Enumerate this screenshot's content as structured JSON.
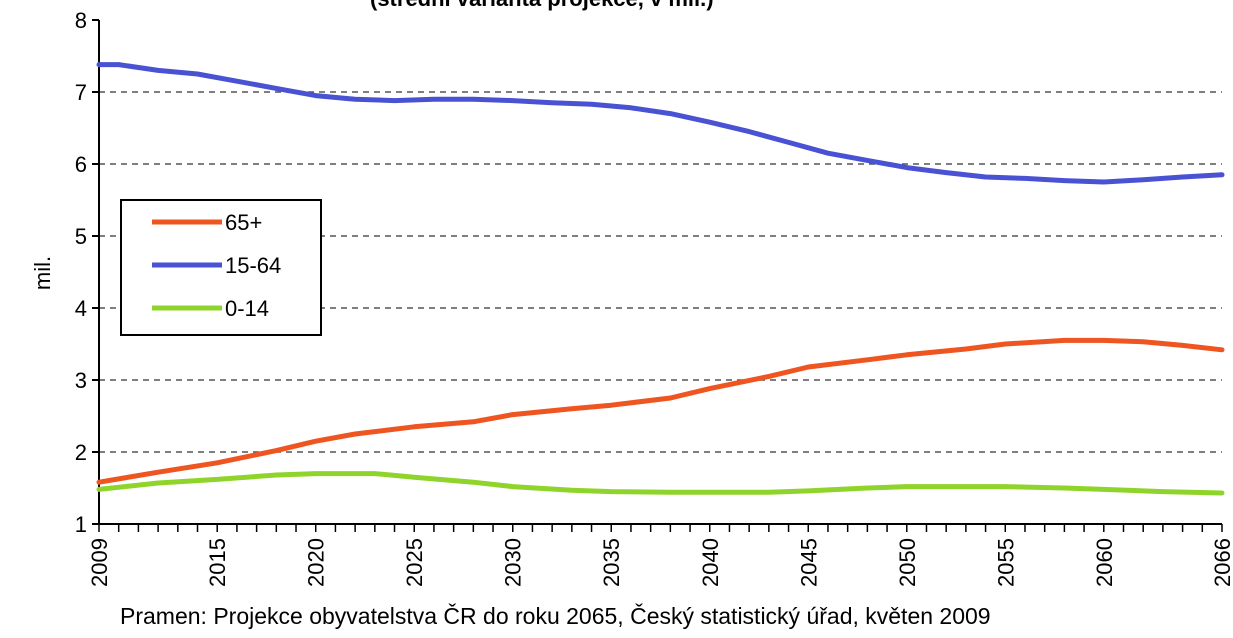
{
  "title_fragment": "(střední varianta projekce, v mil.)",
  "source_note": "Pramen: Projekce obyvatelstva ČR do roku 2065, Český statistický úřad, květen 2009",
  "chart_data": {
    "type": "line",
    "ylabel": "mil.",
    "xlabel": "",
    "ylim": [
      1,
      8
    ],
    "xlim": [
      2009,
      2066
    ],
    "grid": "horizontal-dashed",
    "legend_position": "left",
    "y_ticks": [
      "1",
      "2",
      "3",
      "4",
      "5",
      "6",
      "7",
      "8"
    ],
    "x_ticks": [
      "2009",
      "2015",
      "2020",
      "2025",
      "2030",
      "2035",
      "2040",
      "2045",
      "2050",
      "2055",
      "2060",
      "2066"
    ],
    "series": [
      {
        "name": "65+",
        "color": "#ee5520",
        "x": [
          2009,
          2012,
          2015,
          2018,
          2020,
          2022,
          2025,
          2028,
          2030,
          2033,
          2035,
          2038,
          2040,
          2043,
          2045,
          2048,
          2050,
          2053,
          2055,
          2058,
          2060,
          2062,
          2064,
          2066
        ],
        "y": [
          1.58,
          1.72,
          1.85,
          2.02,
          2.15,
          2.25,
          2.35,
          2.42,
          2.52,
          2.6,
          2.65,
          2.75,
          2.88,
          3.05,
          3.18,
          3.28,
          3.35,
          3.43,
          3.5,
          3.55,
          3.55,
          3.53,
          3.48,
          3.42
        ]
      },
      {
        "name": "15-64",
        "color": "#4a52d4",
        "x": [
          2009,
          2010,
          2012,
          2014,
          2016,
          2018,
          2020,
          2022,
          2024,
          2026,
          2028,
          2030,
          2032,
          2034,
          2036,
          2038,
          2040,
          2042,
          2044,
          2046,
          2048,
          2050,
          2052,
          2054,
          2056,
          2058,
          2060,
          2062,
          2064,
          2066
        ],
        "y": [
          7.38,
          7.38,
          7.3,
          7.25,
          7.15,
          7.05,
          6.95,
          6.9,
          6.88,
          6.9,
          6.9,
          6.88,
          6.85,
          6.83,
          6.78,
          6.7,
          6.58,
          6.45,
          6.3,
          6.15,
          6.05,
          5.95,
          5.88,
          5.82,
          5.8,
          5.77,
          5.75,
          5.78,
          5.82,
          5.85
        ]
      },
      {
        "name": "0-14",
        "color": "#8fd42a",
        "x": [
          2009,
          2012,
          2015,
          2018,
          2020,
          2023,
          2025,
          2028,
          2030,
          2033,
          2035,
          2038,
          2040,
          2043,
          2045,
          2048,
          2050,
          2053,
          2055,
          2058,
          2060,
          2063,
          2066
        ],
        "y": [
          1.48,
          1.57,
          1.62,
          1.68,
          1.7,
          1.7,
          1.65,
          1.58,
          1.52,
          1.47,
          1.45,
          1.44,
          1.44,
          1.44,
          1.46,
          1.5,
          1.52,
          1.52,
          1.52,
          1.5,
          1.48,
          1.45,
          1.43
        ]
      }
    ]
  }
}
